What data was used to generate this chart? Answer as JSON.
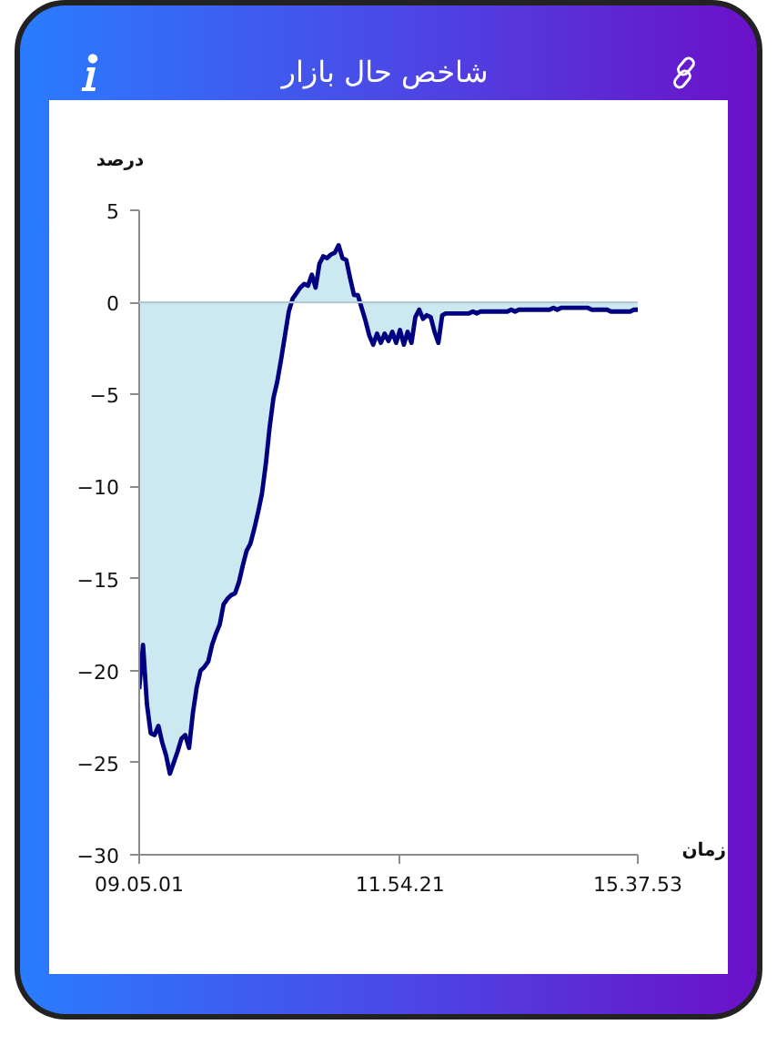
{
  "chart_data": {
    "type": "area",
    "title": "شاخص حال بازار",
    "xlabel": "زمان",
    "ylabel": "درصد",
    "categories": [
      "09.05.01",
      null,
      null,
      null,
      null,
      null,
      null,
      null,
      null,
      null,
      null,
      null,
      null,
      null,
      null,
      null,
      null,
      null,
      null,
      null,
      null,
      null,
      null,
      null,
      null,
      null,
      null,
      null,
      null,
      null,
      null,
      null,
      null,
      null,
      null,
      null,
      null,
      null,
      null,
      null,
      null,
      null,
      null,
      null,
      null,
      null,
      null,
      null,
      null,
      null,
      null,
      null,
      null,
      null,
      null,
      null,
      null,
      null,
      null,
      null,
      null,
      null,
      null,
      null,
      null,
      null,
      null,
      null,
      "11.54.21",
      null,
      null,
      null,
      null,
      null,
      null,
      null,
      null,
      null,
      null,
      null,
      null,
      null,
      null,
      null,
      null,
      null,
      null,
      null,
      null,
      null,
      null,
      null,
      null,
      null,
      null,
      null,
      null,
      null,
      null,
      null,
      null,
      null,
      null,
      null,
      null,
      null,
      null,
      null,
      null,
      null,
      null,
      null,
      null,
      null,
      null,
      null,
      null,
      null,
      null,
      null,
      null,
      null,
      null,
      null,
      null,
      null,
      null,
      null,
      null,
      null,
      "15.37.53"
    ],
    "series": [
      {
        "color": "#000080",
        "values": [
          -21.0,
          -18.6,
          -21.8,
          -23.4,
          -23.5,
          -23.0,
          -23.9,
          -24.6,
          -25.6,
          -25.0,
          -24.4,
          -23.7,
          -23.5,
          -24.2,
          -22.3,
          -20.9,
          -20.0,
          -19.8,
          -19.5,
          -18.6,
          -18.0,
          -17.5,
          -16.4,
          -16.1,
          -15.9,
          -15.8,
          -15.2,
          -14.3,
          -13.5,
          -13.1,
          -12.3,
          -11.4,
          -10.4,
          -8.8,
          -6.8,
          -5.2,
          -4.3,
          -3.1,
          -1.8,
          -0.5,
          0.2,
          0.5,
          0.8,
          1.0,
          0.9,
          1.5,
          0.8,
          2.1,
          2.5,
          2.4,
          2.6,
          2.7,
          3.1,
          2.4,
          2.3,
          1.3,
          0.4,
          0.4,
          -0.3,
          -1.0,
          -1.8,
          -2.3,
          -1.7,
          -2.2,
          -1.7,
          -2.1,
          -1.6,
          -2.2,
          -1.5,
          -2.3,
          -1.6,
          -2.2,
          -0.8,
          -0.4,
          -0.9,
          -0.7,
          -0.8,
          -1.6,
          -2.2,
          -0.7,
          -0.6,
          -0.6,
          -0.6,
          -0.6,
          -0.6,
          -0.6,
          -0.6,
          -0.5,
          -0.6,
          -0.5,
          -0.5,
          -0.5,
          -0.5,
          -0.5,
          -0.5,
          -0.5,
          -0.5,
          -0.4,
          -0.5,
          -0.4,
          -0.4,
          -0.4,
          -0.4,
          -0.4,
          -0.4,
          -0.4,
          -0.4,
          -0.4,
          -0.3,
          -0.4,
          -0.3,
          -0.3,
          -0.3,
          -0.3,
          -0.3,
          -0.3,
          -0.3,
          -0.3,
          -0.4,
          -0.4,
          -0.4,
          -0.4,
          -0.4,
          -0.5,
          -0.5,
          -0.5,
          -0.5,
          -0.5,
          -0.5,
          -0.4,
          -0.4
        ]
      }
    ],
    "colors": [
      "#cce8f1"
    ],
    "ylim": [
      -30,
      5
    ],
    "yticks": [
      5,
      0,
      -5,
      -10,
      -15,
      -20,
      -25,
      -30
    ],
    "ref_lines": [
      {
        "axis": "y",
        "value": 0,
        "color": "#b4c8d2"
      }
    ]
  }
}
